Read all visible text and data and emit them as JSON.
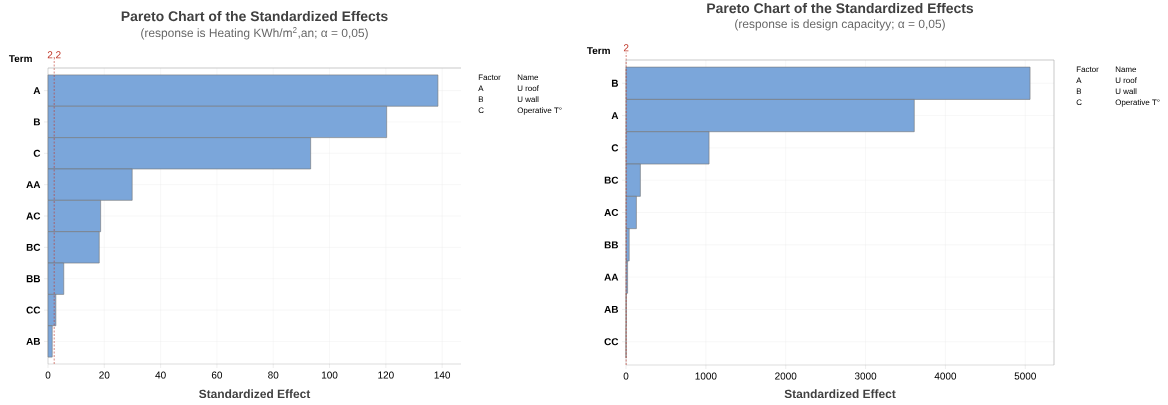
{
  "chart_data": [
    {
      "type": "bar",
      "orientation": "horizontal",
      "title": "Pareto Chart of the Standardized Effects",
      "subtitle": "(response is Heating KWh/m$^{2}$,an; α = 0,05)",
      "xlabel": "Standardized Effect",
      "ylabel": "Term",
      "categories": [
        "A",
        "B",
        "C",
        "AA",
        "AC",
        "BC",
        "BB",
        "CC",
        "AB"
      ],
      "values": [
        138.5,
        120.3,
        93.3,
        29.9,
        18.7,
        18.2,
        5.6,
        2.8,
        1.5
      ],
      "color": "#7ba6da",
      "xlim": [
        0,
        146.7
      ],
      "xticks": [
        0,
        20,
        40,
        60,
        80,
        100,
        120,
        140
      ],
      "grid": true,
      "ref_lines": [
        {
          "axis": "x",
          "value": 2.2,
          "label": "2,2",
          "color": "#c0392b",
          "line_style": "dashed"
        }
      ],
      "annotations": [
        "Factor",
        "Name",
        "A",
        "U roof",
        "B",
        "U wall",
        "C",
        "Operative T°"
      ]
    },
    {
      "type": "bar",
      "orientation": "horizontal",
      "title": "Pareto Chart of the Standardized Effects",
      "subtitle": "(response is design capacityy; α = 0,05)",
      "xlabel": "Standardized Effect",
      "ylabel": "Term",
      "categories": [
        "B",
        "A",
        "C",
        "BC",
        "AC",
        "BB",
        "AA",
        "AB",
        "CC"
      ],
      "values": [
        5060,
        3610,
        1040,
        180,
        130,
        40,
        20,
        3,
        1
      ],
      "color": "#7ba6da",
      "xlim": [
        0,
        5360
      ],
      "xticks": [
        0,
        1000,
        2000,
        3000,
        4000,
        5000
      ],
      "grid": true,
      "ref_lines": [
        {
          "axis": "x",
          "value": 2,
          "label": "2",
          "color": "#c0392b",
          "line_style": "dashed"
        }
      ],
      "annotations": [
        "Factor",
        "Name",
        "A",
        "U roof",
        "B",
        "U wall",
        "C",
        "Operative T°"
      ]
    }
  ]
}
